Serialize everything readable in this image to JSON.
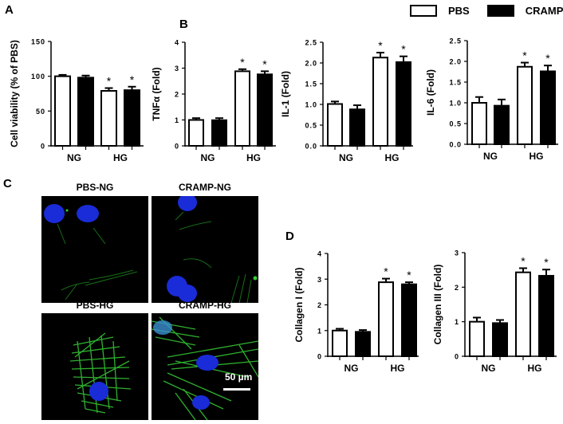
{
  "legend": {
    "items": [
      {
        "label": "PBS",
        "fill": "#ffffff"
      },
      {
        "label": "CRAMP",
        "fill": "#000000"
      }
    ]
  },
  "panels": {
    "A": "A",
    "B": "B",
    "C": "C",
    "D": "D"
  },
  "microscopy": {
    "titles": [
      "PBS-NG",
      "CRAMP-NG",
      "PBS-HG",
      "CRAMP-HG"
    ],
    "scale_bar": "50 µm",
    "colors": {
      "actin": "#2fbf2f",
      "nuclei": "#1a2bd8",
      "background": "#000000"
    }
  },
  "chart_data": [
    {
      "type": "bar",
      "panel": "A",
      "title": "",
      "xlabel": "",
      "ylabel": "Cell viability (% of PBS)",
      "categories": [
        "NG",
        "HG"
      ],
      "ylim": [
        0,
        150
      ],
      "yticks": [
        "0",
        "50",
        "100",
        "150"
      ],
      "series": [
        {
          "name": "PBS",
          "values": [
            100,
            79
          ],
          "errors": [
            2,
            4
          ]
        },
        {
          "name": "CRAMP",
          "values": [
            98,
            80
          ],
          "errors": [
            3,
            5
          ]
        }
      ],
      "significance": [
        [
          false,
          true
        ],
        [
          false,
          true
        ]
      ],
      "grid": false,
      "legend_position": "top-right (shared)"
    },
    {
      "type": "bar",
      "panel": "B",
      "title": "",
      "xlabel": "",
      "ylabel": "TNFα (Fold)",
      "categories": [
        "NG",
        "HG"
      ],
      "ylim": [
        0,
        4
      ],
      "yticks": [
        "0",
        "1",
        "2",
        "3",
        "4"
      ],
      "series": [
        {
          "name": "PBS",
          "values": [
            1.0,
            2.88
          ],
          "errors": [
            0.07,
            0.08
          ]
        },
        {
          "name": "CRAMP",
          "values": [
            0.99,
            2.76
          ],
          "errors": [
            0.08,
            0.12
          ]
        }
      ],
      "significance": [
        [
          false,
          true
        ],
        [
          false,
          true
        ]
      ],
      "grid": false
    },
    {
      "type": "bar",
      "panel": "B",
      "title": "",
      "xlabel": "",
      "ylabel": "IL-1 (Fold)",
      "categories": [
        "NG",
        "HG"
      ],
      "ylim": [
        0,
        2.5
      ],
      "yticks": [
        "0.0",
        "0.5",
        "1.0",
        "1.5",
        "2.0",
        "2.5"
      ],
      "series": [
        {
          "name": "PBS",
          "values": [
            1.01,
            2.13
          ],
          "errors": [
            0.06,
            0.12
          ]
        },
        {
          "name": "CRAMP",
          "values": [
            0.88,
            2.02
          ],
          "errors": [
            0.1,
            0.14
          ]
        }
      ],
      "significance": [
        [
          false,
          true
        ],
        [
          false,
          true
        ]
      ],
      "grid": false
    },
    {
      "type": "bar",
      "panel": "B",
      "title": "",
      "xlabel": "",
      "ylabel": "IL-6 (Fold)",
      "categories": [
        "NG",
        "HG"
      ],
      "ylim": [
        0,
        2.5
      ],
      "yticks": [
        "0.0",
        "0.5",
        "1.0",
        "1.5",
        "2.0",
        "2.5"
      ],
      "series": [
        {
          "name": "PBS",
          "values": [
            1.0,
            1.87
          ],
          "errors": [
            0.14,
            0.1
          ]
        },
        {
          "name": "CRAMP",
          "values": [
            0.93,
            1.76
          ],
          "errors": [
            0.15,
            0.14
          ]
        }
      ],
      "significance": [
        [
          false,
          true
        ],
        [
          false,
          true
        ]
      ],
      "grid": false
    },
    {
      "type": "bar",
      "panel": "D",
      "title": "",
      "xlabel": "",
      "ylabel": "Collagen I (Fold)",
      "categories": [
        "NG",
        "HG"
      ],
      "ylim": [
        0,
        4
      ],
      "yticks": [
        "0",
        "1",
        "2",
        "3",
        "4"
      ],
      "series": [
        {
          "name": "PBS",
          "values": [
            1.0,
            2.88
          ],
          "errors": [
            0.07,
            0.14
          ]
        },
        {
          "name": "CRAMP",
          "values": [
            0.95,
            2.8
          ],
          "errors": [
            0.07,
            0.08
          ]
        }
      ],
      "significance": [
        [
          false,
          true
        ],
        [
          false,
          true
        ]
      ],
      "grid": false
    },
    {
      "type": "bar",
      "panel": "D",
      "title": "",
      "xlabel": "",
      "ylabel": "Collagen III (Fold)",
      "categories": [
        "NG",
        "HG"
      ],
      "ylim": [
        0,
        3
      ],
      "yticks": [
        "0",
        "1",
        "2",
        "3"
      ],
      "series": [
        {
          "name": "PBS",
          "values": [
            1.0,
            2.43
          ],
          "errors": [
            0.12,
            0.12
          ]
        },
        {
          "name": "CRAMP",
          "values": [
            0.96,
            2.33
          ],
          "errors": [
            0.09,
            0.18
          ]
        }
      ],
      "significance": [
        [
          false,
          true
        ],
        [
          false,
          true
        ]
      ],
      "grid": false
    }
  ]
}
